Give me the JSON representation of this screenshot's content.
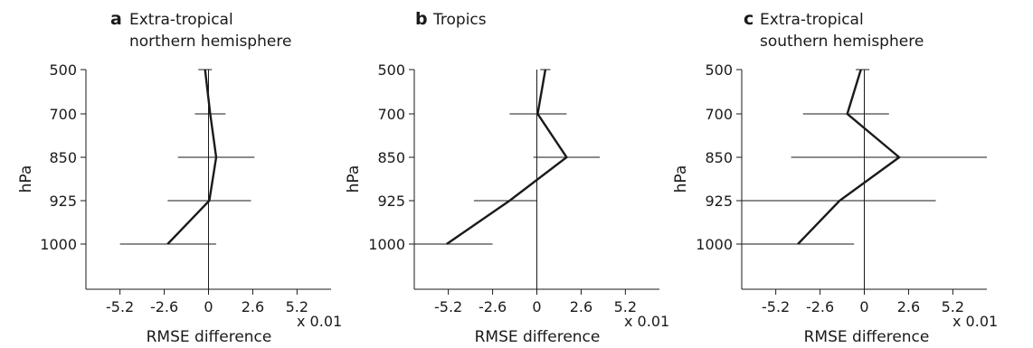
{
  "chart_data": [
    {
      "type": "line",
      "panel_letter": "a",
      "title_lines": [
        "Extra-tropical",
        "northern hemisphere"
      ],
      "xlabel": "RMSE difference",
      "x_multiplier": "x 0.01",
      "ylabel": "hPa",
      "xlim": [
        -7.2,
        7.2
      ],
      "x_ticks": [
        -5.2,
        -2.6,
        0,
        2.6,
        5.2
      ],
      "x_tick_labels": [
        "-5.2",
        "-2.6",
        "0",
        "2.6",
        "5.2"
      ],
      "y_categories": [
        "500",
        "700",
        "850",
        "925",
        "1000"
      ],
      "y_inverted": true,
      "series": [
        {
          "values": [
            -0.2,
            0.1,
            0.45,
            0.05,
            -2.4
          ],
          "err_low": [
            -0.6,
            -0.8,
            -1.8,
            -2.4,
            -5.2
          ],
          "err_high": [
            0.2,
            1.0,
            2.7,
            2.5,
            0.45
          ]
        }
      ]
    },
    {
      "type": "line",
      "panel_letter": "b",
      "title_lines": [
        "Tropics"
      ],
      "xlabel": "RMSE difference",
      "x_multiplier": "x 0.01",
      "ylabel": "hPa",
      "xlim": [
        -7.2,
        7.2
      ],
      "x_ticks": [
        -5.2,
        -2.6,
        0,
        2.6,
        5.2
      ],
      "x_tick_labels": [
        "-5.2",
        "-2.6",
        "0",
        "2.6",
        "5.2"
      ],
      "y_categories": [
        "500",
        "700",
        "850",
        "925",
        "1000"
      ],
      "y_inverted": true,
      "series": [
        {
          "values": [
            0.5,
            0.05,
            1.75,
            -1.6,
            -5.3
          ],
          "err_low": [
            0.2,
            -1.6,
            -0.2,
            -3.7,
            -7.2
          ],
          "err_high": [
            0.8,
            1.75,
            3.7,
            0.0,
            -2.6
          ]
        }
      ]
    },
    {
      "type": "line",
      "panel_letter": "c",
      "title_lines": [
        "Extra-tropical",
        "southern hemisphere"
      ],
      "xlabel": "RMSE difference",
      "x_multiplier": "x 0.01",
      "ylabel": "hPa",
      "xlim": [
        -7.2,
        7.2
      ],
      "x_ticks": [
        -5.2,
        -2.6,
        0,
        2.6,
        5.2
      ],
      "x_tick_labels": [
        "-5.2",
        "-2.6",
        "0",
        "2.6",
        "5.2"
      ],
      "y_categories": [
        "500",
        "700",
        "850",
        "925",
        "1000"
      ],
      "y_inverted": true,
      "series": [
        {
          "values": [
            -0.2,
            -1.0,
            2.05,
            -1.45,
            -3.9
          ],
          "err_low": [
            -0.5,
            -3.6,
            -4.3,
            -7.2,
            -7.2
          ],
          "err_high": [
            0.3,
            1.45,
            7.2,
            4.2,
            -0.6
          ]
        }
      ]
    }
  ]
}
